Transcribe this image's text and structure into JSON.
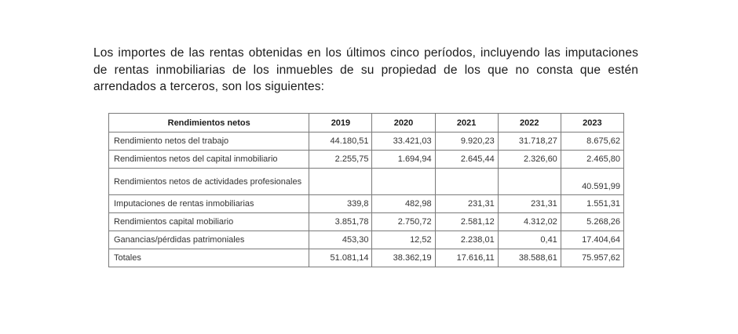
{
  "intro_text": "Los importes de las rentas obtenidas en los últimos cinco períodos, incluyendo las imputaciones de rentas inmobiliarias de los inmuebles de su propiedad de los que no consta que estén arrendados a terceros, son los siguientes:",
  "table": {
    "header": {
      "concept": "Rendimientos netos",
      "years": [
        "2019",
        "2020",
        "2021",
        "2022",
        "2023"
      ]
    },
    "rows": [
      {
        "label": "Rendimiento netos del trabajo",
        "values": [
          "44.180,51",
          "33.421,03",
          "9.920,23",
          "31.718,27",
          "8.675,62"
        ]
      },
      {
        "label": "Rendimientos netos del capital inmobiliario",
        "values": [
          "2.255,75",
          "1.694,94",
          "2.645,44",
          "2.326,60",
          "2.465,80"
        ]
      },
      {
        "label": "Rendimientos netos de actividades profesionales",
        "values": [
          "",
          "",
          "",
          "",
          "40.591,99"
        ]
      },
      {
        "label": "Imputaciones de rentas inmobiliarias",
        "values": [
          "339,8",
          "482,98",
          "231,31",
          "231,31",
          "1.551,31"
        ]
      },
      {
        "label": "Rendimientos capital mobiliario",
        "values": [
          "3.851,78",
          "2.750,72",
          "2.581,12",
          "4.312,02",
          "5.268,26"
        ]
      },
      {
        "label": "Ganancias/pérdidas patrimoniales",
        "values": [
          "453,30",
          "12,52",
          "2.238,01",
          "0,41",
          "17.404,64"
        ]
      },
      {
        "label": "Totales",
        "values": [
          "51.081,14",
          "38.362,19",
          "17.616,11",
          "38.588,61",
          "75.957,62"
        ]
      }
    ]
  }
}
